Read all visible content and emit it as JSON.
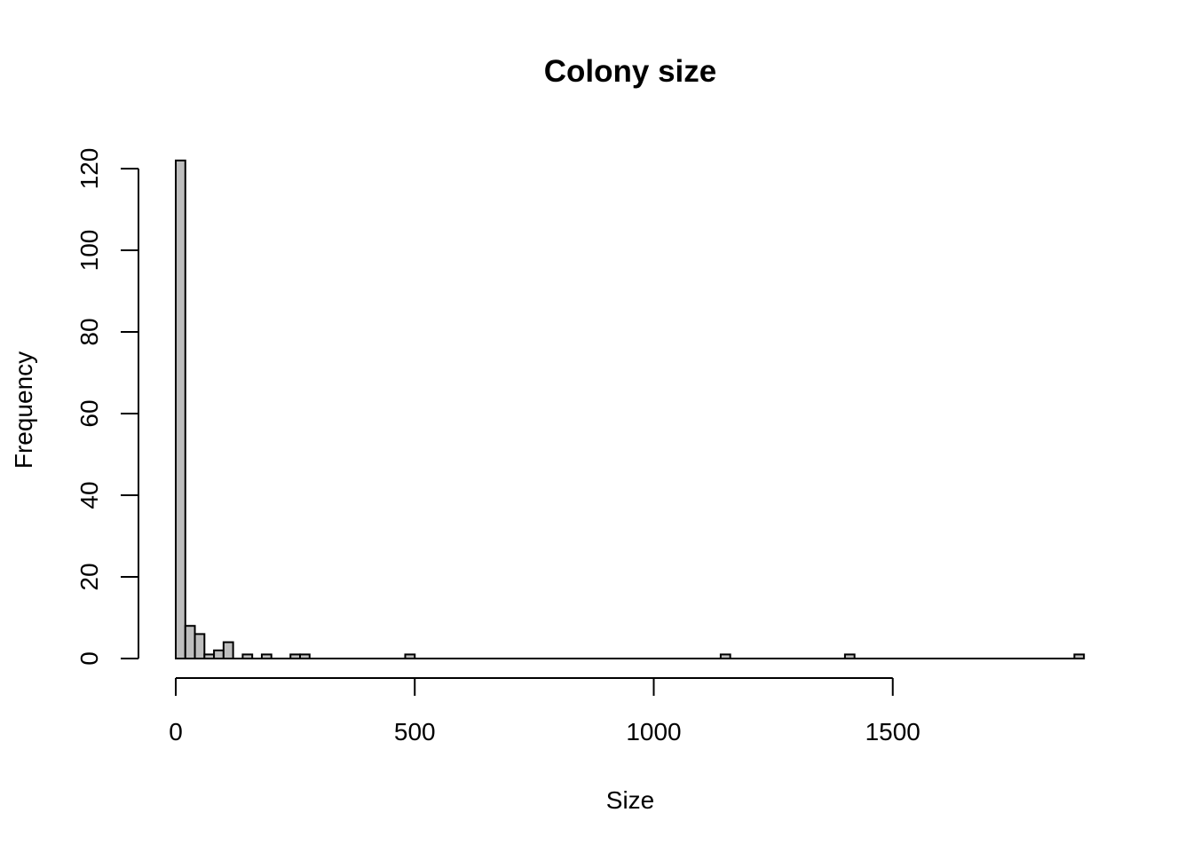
{
  "chart_data": {
    "type": "bar",
    "subtype": "histogram",
    "title": "Colony size",
    "xlabel": "Size",
    "ylabel": "Frequency",
    "bin_width": 20,
    "xlim": [
      0,
      1900
    ],
    "ylim": [
      0,
      120
    ],
    "x_ticks": [
      0,
      500,
      1000,
      1500
    ],
    "y_ticks": [
      0,
      20,
      40,
      60,
      80,
      100,
      120
    ],
    "bar_fill": "#bebebe",
    "bar_stroke": "#000000",
    "grid": false,
    "legend": "none",
    "bins": [
      {
        "start": 0,
        "end": 20,
        "count": 122
      },
      {
        "start": 20,
        "end": 40,
        "count": 8
      },
      {
        "start": 40,
        "end": 60,
        "count": 6
      },
      {
        "start": 60,
        "end": 80,
        "count": 1
      },
      {
        "start": 80,
        "end": 100,
        "count": 2
      },
      {
        "start": 100,
        "end": 120,
        "count": 4
      },
      {
        "start": 140,
        "end": 160,
        "count": 1
      },
      {
        "start": 180,
        "end": 200,
        "count": 1
      },
      {
        "start": 240,
        "end": 260,
        "count": 1
      },
      {
        "start": 260,
        "end": 280,
        "count": 1
      },
      {
        "start": 480,
        "end": 500,
        "count": 1
      },
      {
        "start": 1140,
        "end": 1160,
        "count": 1
      },
      {
        "start": 1400,
        "end": 1420,
        "count": 1
      },
      {
        "start": 1880,
        "end": 1900,
        "count": 1
      }
    ]
  }
}
